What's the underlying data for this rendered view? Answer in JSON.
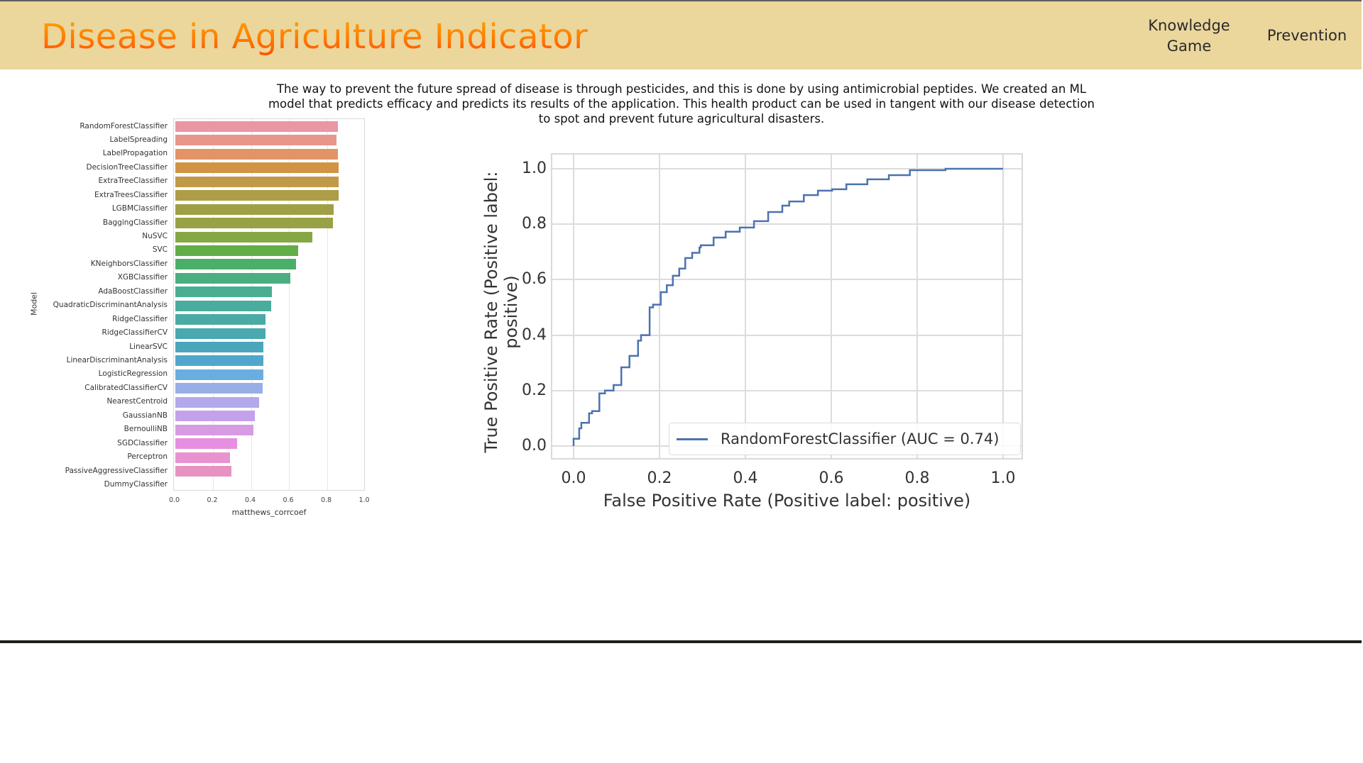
{
  "header": {
    "title": "Disease in Agriculture Indicator",
    "nav": [
      {
        "label": "Knowledge Game"
      },
      {
        "label": "Prevention"
      }
    ]
  },
  "colors": {
    "header_bg": "#ebd69c",
    "title_gradient_top": "#ffa600",
    "title_gradient_bottom": "#ff4d00",
    "roc_line": "#4c72b0",
    "divider": "#201c17"
  },
  "description": "The way to prevent the future spread of disease is through pesticides, and this is done by using antimicrobial peptides. We created an ML model that predicts efficacy and predicts its results of the application. This health product can be used in tangent with our disease detection to spot and prevent future agricultural disasters.",
  "chart_data": [
    {
      "type": "bar",
      "orientation": "horizontal",
      "title": "",
      "xlabel": "matthews_corrcoef",
      "ylabel": "Model",
      "xlim": [
        0.0,
        1.0
      ],
      "xticks": [
        "0.0",
        "0.2",
        "0.4",
        "0.6",
        "0.8",
        "1.0"
      ],
      "grid": true,
      "categories": [
        "RandomForestClassifier",
        "LabelSpreading",
        "LabelPropagation",
        "DecisionTreeClassifier",
        "ExtraTreeClassifier",
        "ExtraTreesClassifier",
        "LGBMClassifier",
        "BaggingClassifier",
        "NuSVC",
        "SVC",
        "KNeighborsClassifier",
        "XGBClassifier",
        "AdaBoostClassifier",
        "QuadraticDiscriminantAnalysis",
        "RidgeClassifier",
        "RidgeClassifierCV",
        "LinearSVC",
        "LinearDiscriminantAnalysis",
        "LogisticRegression",
        "CalibratedClassifierCV",
        "NearestCentroid",
        "GaussianNB",
        "BernoulliNB",
        "SGDClassifier",
        "Perceptron",
        "PassiveAggressiveClassifier",
        "DummyClassifier"
      ],
      "values": [
        0.857,
        0.852,
        0.857,
        0.861,
        0.861,
        0.861,
        0.835,
        0.831,
        0.724,
        0.648,
        0.637,
        0.608,
        0.512,
        0.507,
        0.475,
        0.475,
        0.467,
        0.467,
        0.465,
        0.461,
        0.442,
        0.421,
        0.414,
        0.328,
        0.29,
        0.299,
        0.0
      ],
      "colors": [
        "#ea96a3",
        "#e8968a",
        "#e29467",
        "#d19444",
        "#c09a48",
        "#ae9d47",
        "#a19f45",
        "#98a244",
        "#86a844",
        "#62ad47",
        "#4baf6a",
        "#4aae81",
        "#4aae92",
        "#4aac9d",
        "#4aaaa6",
        "#4aa8af",
        "#4ba6bb",
        "#52a6cb",
        "#6aaee0",
        "#98aee6",
        "#b2a8eb",
        "#c4a2eb",
        "#d79be4",
        "#e68fe0",
        "#e893d0",
        "#e892c2",
        "#e892b4"
      ]
    },
    {
      "type": "line",
      "title": "",
      "xlabel": "False Positive Rate (Positive label: positive)",
      "ylabel": "True Positive Rate (Positive label: positive)",
      "xlim": [
        -0.05,
        1.05
      ],
      "ylim": [
        -0.05,
        1.05
      ],
      "xticks": [
        "0.0",
        "0.2",
        "0.4",
        "0.6",
        "0.8",
        "1.0"
      ],
      "yticks": [
        "0.0",
        "0.2",
        "0.4",
        "0.6",
        "0.8",
        "1.0"
      ],
      "grid": true,
      "legend_position": "lower right",
      "series": [
        {
          "name": "RandomForestClassifier (AUC = 0.74)",
          "auc": 0.74,
          "x": [
            0.0,
            0.013,
            0.018,
            0.036,
            0.043,
            0.06,
            0.073,
            0.093,
            0.111,
            0.13,
            0.15,
            0.157,
            0.177,
            0.185,
            0.203,
            0.217,
            0.231,
            0.246,
            0.26,
            0.276,
            0.293,
            0.296,
            0.326,
            0.354,
            0.387,
            0.42,
            0.453,
            0.486,
            0.502,
            0.536,
            0.569,
            0.602,
            0.635,
            0.684,
            0.734,
            0.783,
            0.866,
            0.916,
            1.0
          ],
          "y": [
            0.0,
            0.026,
            0.064,
            0.084,
            0.118,
            0.126,
            0.19,
            0.2,
            0.22,
            0.284,
            0.325,
            0.38,
            0.4,
            0.5,
            0.51,
            0.555,
            0.58,
            0.614,
            0.64,
            0.678,
            0.697,
            0.716,
            0.724,
            0.752,
            0.773,
            0.788,
            0.811,
            0.844,
            0.867,
            0.882,
            0.905,
            0.921,
            0.926,
            0.944,
            0.962,
            0.977,
            0.995,
            1.0,
            1.0
          ]
        }
      ]
    }
  ],
  "bar_chart": {
    "xlabel": "matthews_corrcoef",
    "ylabel": "Model",
    "xticks": [
      "0.0",
      "0.2",
      "0.4",
      "0.6",
      "0.8",
      "1.0"
    ]
  },
  "roc_chart": {
    "xlabel": "False Positive Rate (Positive label: positive)",
    "ylabel": "True Positive Rate (Positive label: positive)",
    "legend": "RandomForestClassifier (AUC = 0.74)",
    "xticks": [
      "0.0",
      "0.2",
      "0.4",
      "0.6",
      "0.8",
      "1.0"
    ],
    "yticks": [
      "1.0",
      "0.8",
      "0.6",
      "0.4",
      "0.2",
      "0.0"
    ]
  }
}
